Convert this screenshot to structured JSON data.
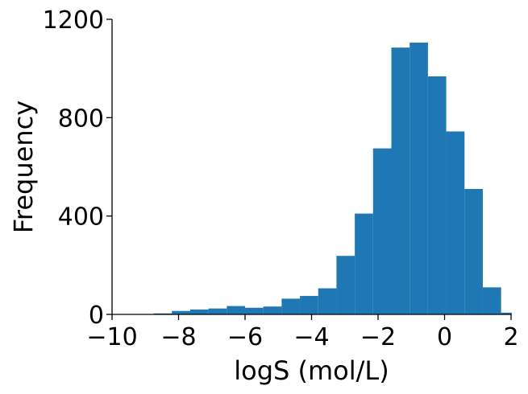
{
  "chart_data": {
    "type": "bar",
    "subtype": "histogram",
    "xlabel": "logS (mol/L)",
    "ylabel": "Frequency",
    "xlim": [
      -10,
      2
    ],
    "ylim": [
      0,
      1200
    ],
    "xticks": [
      -10,
      -8,
      -6,
      -4,
      -2,
      0,
      2
    ],
    "xtick_labels": [
      "−10",
      "−8",
      "−6",
      "−4",
      "−2",
      "0",
      "2"
    ],
    "yticks": [
      0,
      400,
      800,
      1200
    ],
    "ytick_labels": [
      "0",
      "400",
      "800",
      "1200"
    ],
    "bar_color": "#1f77b4",
    "grid": false,
    "bins": [
      {
        "x0": -8.75,
        "x1": -8.2,
        "count": 4
      },
      {
        "x0": -8.2,
        "x1": -7.65,
        "count": 14
      },
      {
        "x0": -7.65,
        "x1": -7.1,
        "count": 20
      },
      {
        "x0": -7.1,
        "x1": -6.55,
        "count": 24
      },
      {
        "x0": -6.55,
        "x1": -6.0,
        "count": 34
      },
      {
        "x0": -6.0,
        "x1": -5.45,
        "count": 27
      },
      {
        "x0": -5.45,
        "x1": -4.9,
        "count": 32
      },
      {
        "x0": -4.9,
        "x1": -4.35,
        "count": 64
      },
      {
        "x0": -4.35,
        "x1": -3.8,
        "count": 75
      },
      {
        "x0": -3.8,
        "x1": -3.25,
        "count": 106
      },
      {
        "x0": -3.25,
        "x1": -2.7,
        "count": 238
      },
      {
        "x0": -2.7,
        "x1": -2.15,
        "count": 410
      },
      {
        "x0": -2.15,
        "x1": -1.6,
        "count": 675
      },
      {
        "x0": -1.6,
        "x1": -1.05,
        "count": 1085
      },
      {
        "x0": -1.05,
        "x1": -0.5,
        "count": 1105
      },
      {
        "x0": -0.5,
        "x1": 0.05,
        "count": 968
      },
      {
        "x0": 0.05,
        "x1": 0.6,
        "count": 744
      },
      {
        "x0": 0.6,
        "x1": 1.15,
        "count": 510
      },
      {
        "x0": 1.15,
        "x1": 1.7,
        "count": 110
      },
      {
        "x0": 1.7,
        "x1": 2.25,
        "count": 7
      }
    ]
  }
}
